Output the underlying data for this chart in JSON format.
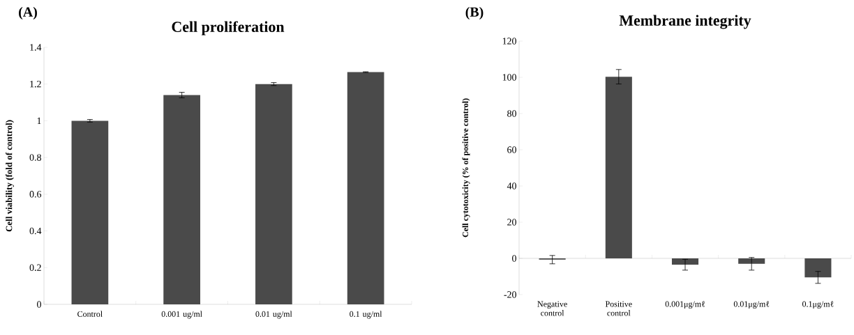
{
  "chart_data": [
    {
      "type": "bar",
      "title": "Cell proliferation",
      "ylabel": "Cell viability (fold of control)",
      "annotations": [
        "(A)"
      ],
      "categories": [
        "Control",
        "0.001 ug/ml",
        "0.01  ug/ml",
        "0.1  ug/ml"
      ],
      "series": [
        {
          "color": "#4a4a4a",
          "values": [
            1.0,
            1.14,
            1.2,
            1.265
          ],
          "errors": [
            0.007,
            0.015,
            0.008,
            0.002
          ]
        }
      ],
      "ylim": [
        0,
        1.4
      ],
      "yticks": [
        0,
        0.2,
        0.4,
        0.6,
        0.8,
        1,
        1.2,
        1.4
      ]
    },
    {
      "type": "bar",
      "title": "Membrane integrity",
      "ylabel": "Cell cytotoxicity (% of positive control)",
      "annotations": [
        "(B)"
      ],
      "categories": [
        "Negative control",
        "Positive control",
        "0.001μg/mℓ",
        "0.01μg/mℓ",
        "0.1μg/mℓ"
      ],
      "series": [
        {
          "color": "#4a4a4a",
          "values": [
            -0.7,
            100.3,
            -3.5,
            -3,
            -10.5
          ],
          "errors": [
            2.3,
            4,
            3,
            3.5,
            3.3
          ]
        }
      ],
      "ylim": [
        -20,
        120
      ],
      "yticks": [
        -20,
        0,
        20,
        40,
        60,
        80,
        100,
        120
      ]
    }
  ]
}
